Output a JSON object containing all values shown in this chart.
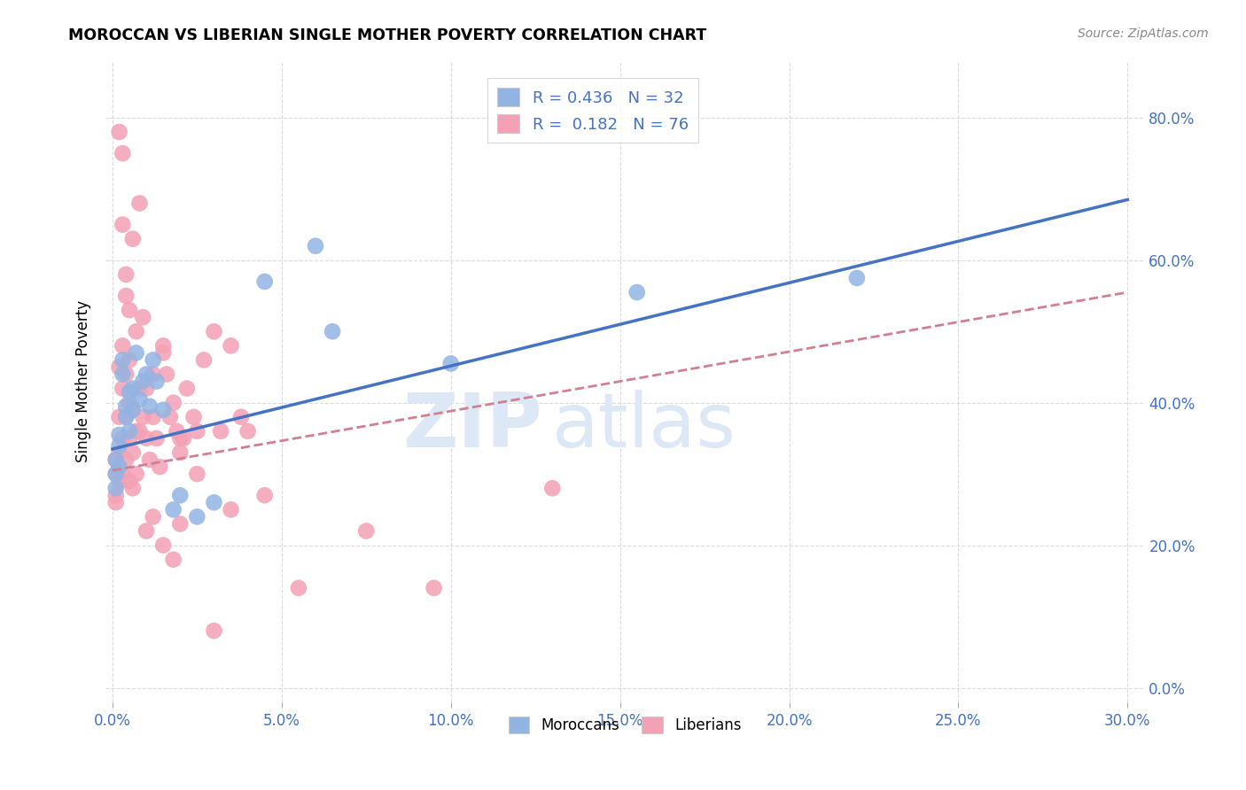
{
  "title": "MOROCCAN VS LIBERIAN SINGLE MOTHER POVERTY CORRELATION CHART",
  "source": "Source: ZipAtlas.com",
  "ylabel": "Single Mother Poverty",
  "xlim": [
    -0.002,
    0.305
  ],
  "ylim": [
    -0.02,
    0.88
  ],
  "moroccan_color": "#92b4e3",
  "liberian_color": "#f4a0b5",
  "moroccan_line_color": "#4472c4",
  "liberian_line_color": "#d08090",
  "watermark_color": "#dce8f5",
  "watermark_text": "ZIPatlas",
  "legend_R_moroccan": "0.436",
  "legend_N_moroccan": "32",
  "legend_R_liberian": "0.182",
  "legend_N_liberian": "76",
  "moroccan_line_x": [
    0.0,
    0.3
  ],
  "moroccan_line_y": [
    0.335,
    0.685
  ],
  "liberian_line_x": [
    0.0,
    0.3
  ],
  "liberian_line_y": [
    0.305,
    0.555
  ],
  "moroccan_x": [
    0.001,
    0.001,
    0.001,
    0.002,
    0.002,
    0.002,
    0.003,
    0.003,
    0.004,
    0.004,
    0.005,
    0.005,
    0.006,
    0.006,
    0.007,
    0.008,
    0.009,
    0.01,
    0.011,
    0.012,
    0.013,
    0.015,
    0.018,
    0.02,
    0.025,
    0.03,
    0.045,
    0.06,
    0.065,
    0.1,
    0.155,
    0.22
  ],
  "moroccan_y": [
    0.32,
    0.3,
    0.28,
    0.355,
    0.34,
    0.31,
    0.46,
    0.44,
    0.395,
    0.38,
    0.415,
    0.36,
    0.42,
    0.39,
    0.47,
    0.405,
    0.43,
    0.44,
    0.395,
    0.46,
    0.43,
    0.39,
    0.25,
    0.27,
    0.24,
    0.26,
    0.57,
    0.62,
    0.5,
    0.455,
    0.555,
    0.575
  ],
  "liberian_x": [
    0.001,
    0.001,
    0.001,
    0.001,
    0.002,
    0.002,
    0.002,
    0.002,
    0.002,
    0.003,
    0.003,
    0.003,
    0.003,
    0.004,
    0.004,
    0.004,
    0.005,
    0.005,
    0.005,
    0.005,
    0.006,
    0.006,
    0.006,
    0.007,
    0.007,
    0.008,
    0.008,
    0.009,
    0.01,
    0.01,
    0.011,
    0.012,
    0.013,
    0.014,
    0.015,
    0.016,
    0.017,
    0.018,
    0.019,
    0.02,
    0.021,
    0.022,
    0.024,
    0.025,
    0.027,
    0.03,
    0.032,
    0.035,
    0.038,
    0.04,
    0.002,
    0.003,
    0.004,
    0.006,
    0.008,
    0.01,
    0.012,
    0.015,
    0.018,
    0.02,
    0.003,
    0.004,
    0.005,
    0.007,
    0.009,
    0.012,
    0.015,
    0.02,
    0.025,
    0.03,
    0.035,
    0.045,
    0.055,
    0.075,
    0.095,
    0.13
  ],
  "liberian_y": [
    0.32,
    0.3,
    0.27,
    0.26,
    0.45,
    0.38,
    0.33,
    0.31,
    0.29,
    0.48,
    0.42,
    0.35,
    0.3,
    0.44,
    0.38,
    0.32,
    0.46,
    0.4,
    0.35,
    0.29,
    0.39,
    0.33,
    0.28,
    0.36,
    0.3,
    0.42,
    0.36,
    0.38,
    0.42,
    0.35,
    0.32,
    0.38,
    0.35,
    0.31,
    0.48,
    0.44,
    0.38,
    0.4,
    0.36,
    0.33,
    0.35,
    0.42,
    0.38,
    0.36,
    0.46,
    0.5,
    0.36,
    0.48,
    0.38,
    0.36,
    0.78,
    0.75,
    0.55,
    0.63,
    0.68,
    0.22,
    0.24,
    0.2,
    0.18,
    0.23,
    0.65,
    0.58,
    0.53,
    0.5,
    0.52,
    0.44,
    0.47,
    0.35,
    0.3,
    0.08,
    0.25,
    0.27,
    0.14,
    0.22,
    0.14,
    0.28
  ],
  "background_color": "#ffffff",
  "grid_color": "#cccccc",
  "xtick_vals": [
    0.0,
    0.05,
    0.1,
    0.15,
    0.2,
    0.25,
    0.3
  ],
  "ytick_vals": [
    0.0,
    0.2,
    0.4,
    0.6,
    0.8
  ]
}
